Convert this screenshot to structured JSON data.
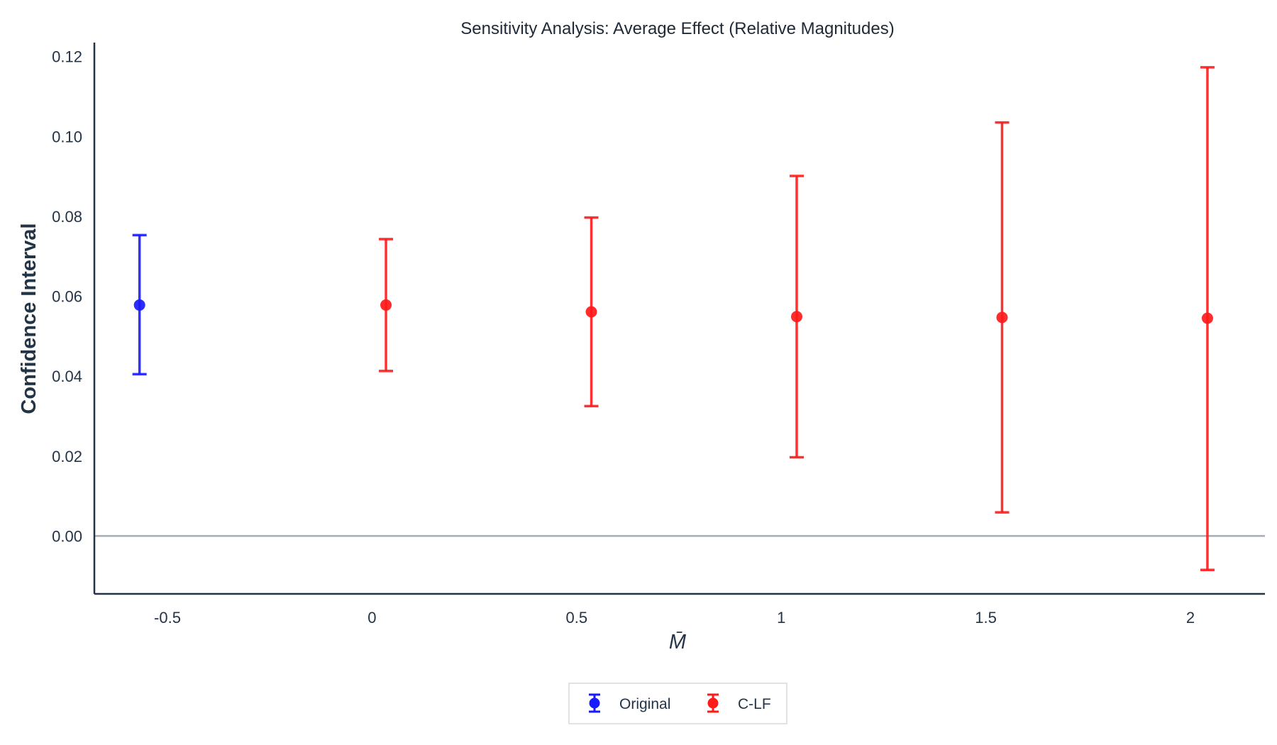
{
  "chart_data": {
    "type": "scatter",
    "subtype": "errorbar",
    "title": "Sensitivity Analysis: Average Effect (Relative Magnitudes)",
    "xlabel": "M̄",
    "ylabel": "Confidence Interval",
    "categories": [
      "-0.5",
      "0",
      "0.5",
      "1",
      "1.5",
      "2"
    ],
    "xlim": [
      -0.66,
      2.19
    ],
    "ylim": [
      -0.0145,
      0.1235
    ],
    "yticks": [
      0.0,
      0.02,
      0.04,
      0.06,
      0.08,
      0.1,
      0.12
    ],
    "ytick_labels": [
      "0.00",
      "0.02",
      "0.04",
      "0.06",
      "0.08",
      "0.10",
      "0.12"
    ],
    "reference_line_y": 0,
    "grid": false,
    "legend_position": "bottom-center",
    "series": [
      {
        "name": "Original",
        "color": "#1a1aff",
        "points": [
          {
            "x": -0.55,
            "y": 0.0578,
            "lower": 0.0405,
            "upper": 0.0753
          }
        ]
      },
      {
        "name": "C-LF",
        "color": "#ff1a1a",
        "points": [
          {
            "x": 0.05,
            "y": 0.0578,
            "lower": 0.0413,
            "upper": 0.0743
          },
          {
            "x": 0.55,
            "y": 0.0561,
            "lower": 0.0325,
            "upper": 0.0797
          },
          {
            "x": 1.05,
            "y": 0.0549,
            "lower": 0.0197,
            "upper": 0.0901
          },
          {
            "x": 1.55,
            "y": 0.0547,
            "lower": 0.0059,
            "upper": 0.1035
          },
          {
            "x": 2.05,
            "y": 0.0545,
            "lower": -0.0085,
            "upper": 0.1173
          }
        ]
      }
    ]
  }
}
